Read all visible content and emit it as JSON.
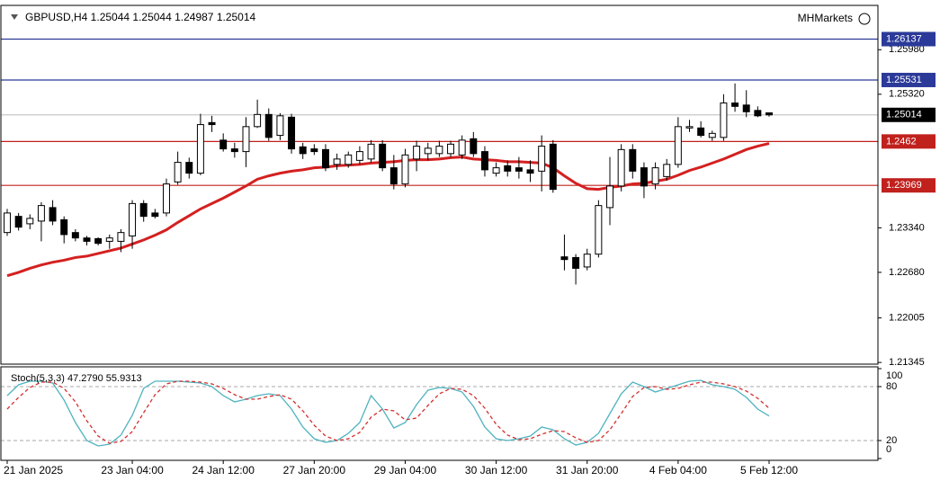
{
  "chart_data": [
    {
      "type": "candlestick",
      "title": "GBPUSD,H4  1.25044 1.25044 1.24987 1.25014",
      "brand": "MHMarkets",
      "categories": [
        "21 Jan 2025",
        null,
        null,
        null,
        null,
        null,
        null,
        null,
        null,
        null,
        null,
        "23 Jan 04:00",
        null,
        null,
        null,
        null,
        null,
        null,
        null,
        "24 Jan 12:00",
        null,
        null,
        null,
        null,
        null,
        null,
        null,
        "27 Jan 20:00",
        null,
        null,
        null,
        null,
        null,
        null,
        null,
        "29 Jan 04:00",
        null,
        null,
        null,
        null,
        null,
        null,
        null,
        "30 Jan 12:00",
        null,
        null,
        null,
        null,
        null,
        null,
        null,
        "31 Jan 20:00",
        null,
        null,
        null,
        null,
        null,
        null,
        null,
        "4 Feb 04:00",
        null,
        null,
        null,
        null,
        null,
        null,
        null,
        "5 Feb 12:00"
      ],
      "open": [
        1.2327,
        1.2351,
        1.234,
        1.2344,
        1.2364,
        1.2346,
        1.2327,
        1.2319,
        1.2318,
        1.2314,
        1.2314,
        1.2322,
        1.237,
        1.2356,
        1.2356,
        1.2402,
        1.2431,
        1.2415,
        1.249,
        1.2464,
        1.2451,
        1.2447,
        1.2484,
        1.2502,
        1.2471,
        1.2498,
        1.2454,
        1.2451,
        1.245,
        1.2428,
        1.2428,
        1.2434,
        1.2436,
        1.2458,
        1.2423,
        1.2399,
        1.2436,
        1.2444,
        1.2444,
        1.2444,
        1.2442,
        1.2466,
        1.2447,
        1.2415,
        1.2426,
        1.2423,
        1.242,
        1.2418,
        1.2458,
        1.2291,
        1.229,
        1.2276,
        1.2295,
        1.2364,
        1.2396,
        1.245,
        1.2423,
        1.2399,
        1.241,
        1.2428,
        1.2482,
        1.2482,
        1.2468,
        1.2468,
        1.2519,
        1.2516,
        1.2508,
        1.25044
      ],
      "high": [
        1.2362,
        1.2356,
        1.2354,
        1.2372,
        1.2375,
        1.2351,
        1.2332,
        1.2322,
        1.232,
        1.2324,
        1.2332,
        1.2375,
        1.2375,
        1.2362,
        1.2407,
        1.2447,
        1.2438,
        1.2503,
        1.25,
        1.2474,
        1.246,
        1.2498,
        1.2524,
        1.2511,
        1.2504,
        1.2503,
        1.246,
        1.2458,
        1.2458,
        1.2444,
        1.2447,
        1.2455,
        1.2464,
        1.2464,
        1.2442,
        1.2451,
        1.2463,
        1.246,
        1.2463,
        1.2463,
        1.2471,
        1.2476,
        1.2455,
        1.2431,
        1.2434,
        1.2439,
        1.2434,
        1.2471,
        1.2464,
        1.2324,
        1.2295,
        1.2303,
        1.2375,
        1.2439,
        1.2458,
        1.2458,
        1.2431,
        1.2431,
        1.2436,
        1.2498,
        1.2494,
        1.2492,
        1.2478,
        1.2532,
        1.2548,
        1.2538,
        1.2514,
        1.25044
      ],
      "low": [
        1.2322,
        1.233,
        1.2332,
        1.2314,
        1.2338,
        1.2311,
        1.2314,
        1.2308,
        1.2308,
        1.2303,
        1.2298,
        1.2303,
        1.2343,
        1.2348,
        1.2351,
        1.2398,
        1.2407,
        1.2412,
        1.2476,
        1.2447,
        1.2438,
        1.2424,
        1.2482,
        1.2463,
        1.2464,
        1.2444,
        1.2436,
        1.2442,
        1.2418,
        1.242,
        1.2423,
        1.2428,
        1.2431,
        1.2418,
        1.2391,
        1.2394,
        1.2418,
        1.2434,
        1.2439,
        1.2439,
        1.2436,
        1.2439,
        1.241,
        1.241,
        1.241,
        1.2407,
        1.2402,
        1.2388,
        1.2386,
        1.2271,
        1.225,
        1.2271,
        1.229,
        1.2338,
        1.2388,
        1.2407,
        1.2378,
        1.2391,
        1.2404,
        1.2423,
        1.2476,
        1.2468,
        1.2463,
        1.2463,
        1.2506,
        1.2498,
        1.2498,
        1.24987
      ],
      "close": [
        1.2356,
        1.2335,
        1.2348,
        1.2367,
        1.2344,
        1.2324,
        1.2319,
        1.2314,
        1.2311,
        1.2319,
        1.2327,
        1.237,
        1.2351,
        1.2351,
        1.2399,
        1.2431,
        1.2415,
        1.2487,
        1.2487,
        1.2451,
        1.2447,
        1.2484,
        1.2502,
        1.2468,
        1.25,
        1.2451,
        1.2444,
        1.2447,
        1.2423,
        1.2436,
        1.2442,
        1.2447,
        1.2458,
        1.2423,
        1.2399,
        1.2442,
        1.2455,
        1.2452,
        1.2455,
        1.2458,
        1.2464,
        1.2444,
        1.242,
        1.2423,
        1.2418,
        1.2418,
        1.2415,
        1.2455,
        1.2391,
        1.2287,
        1.2274,
        1.2295,
        1.2367,
        1.2396,
        1.245,
        1.2418,
        1.2396,
        1.2423,
        1.2428,
        1.2484,
        1.2484,
        1.2471,
        1.2474,
        1.2519,
        1.2514,
        1.2506,
        1.25,
        1.25014
      ],
      "ma": {
        "color": "#d42020",
        "values": [
          1.2263,
          1.2268,
          1.2274,
          1.2279,
          1.2283,
          1.2286,
          1.229,
          1.2292,
          1.2296,
          1.23,
          1.2304,
          1.231,
          1.2316,
          1.2323,
          1.2331,
          1.2342,
          1.2352,
          1.2362,
          1.237,
          1.2378,
          1.2387,
          1.2396,
          1.2406,
          1.2411,
          1.2415,
          1.2418,
          1.242,
          1.2423,
          1.2424,
          1.2426,
          1.2427,
          1.2428,
          1.243,
          1.2431,
          1.2432,
          1.2434,
          1.2435,
          1.2435,
          1.2436,
          1.2438,
          1.2439,
          1.2436,
          1.2435,
          1.2434,
          1.2432,
          1.2432,
          1.2431,
          1.243,
          1.2423,
          1.2411,
          1.24,
          1.2392,
          1.2391,
          1.2394,
          1.2396,
          1.2399,
          1.24,
          1.2403,
          1.2406,
          1.2412,
          1.2419,
          1.2424,
          1.243,
          1.2436,
          1.2443,
          1.245,
          1.2455,
          1.2459
        ]
      },
      "levels": [
        {
          "value": 1.26137,
          "color": "#2b3a99"
        },
        {
          "value": 1.25531,
          "color": "#2b3a99"
        },
        {
          "value": 1.25014,
          "color": "#000000",
          "line_color": "#c8c8c8"
        },
        {
          "value": 1.2462,
          "color": "#c0211d"
        },
        {
          "value": 1.23969,
          "color": "#c0211d"
        }
      ],
      "ylim": [
        1.2132,
        1.2661
      ],
      "yticks": [
        {
          "value": 1.2598,
          "label": "1.25980"
        },
        {
          "value": 1.2532,
          "label": "1.25320"
        },
        {
          "value": 1.2334,
          "label": "1.23340"
        },
        {
          "value": 1.2268,
          "label": "1.22680"
        },
        1.22005,
        1.21345
      ],
      "bull_color": "#ffffff",
      "bear_color": "#000000"
    },
    {
      "type": "line",
      "title": "Stoch(5,3,3) 47.2790 55.9313",
      "ylim": [
        0,
        100
      ],
      "yticks": [
        0,
        20,
        80,
        100
      ],
      "series": [
        {
          "color": "#4fb3bf",
          "values": [
            70,
            82,
            86,
            86,
            84,
            65,
            40,
            20,
            14,
            16,
            26,
            48,
            78,
            86,
            86,
            86,
            85,
            84,
            80,
            70,
            63,
            66,
            70,
            72,
            70,
            55,
            35,
            22,
            18,
            20,
            28,
            40,
            70,
            55,
            34,
            40,
            60,
            76,
            79,
            78,
            74,
            58,
            35,
            22,
            20,
            22,
            25,
            35,
            32,
            22,
            15,
            18,
            28,
            50,
            72,
            85,
            80,
            74,
            78,
            82,
            86,
            87,
            82,
            80,
            77,
            68,
            55,
            47.279
          ]
        },
        {
          "color": "#d43030",
          "dashed": true,
          "values": [
            55,
            68,
            79,
            85,
            85,
            78,
            63,
            42,
            25,
            17,
            19,
            30,
            51,
            71,
            83,
            86,
            86,
            85,
            83,
            78,
            71,
            66,
            66,
            69,
            71,
            66,
            53,
            37,
            25,
            20,
            22,
            29,
            46,
            55,
            53,
            43,
            45,
            59,
            72,
            78,
            77,
            70,
            56,
            38,
            26,
            21,
            22,
            27,
            31,
            30,
            23,
            18,
            20,
            32,
            50,
            69,
            79,
            80,
            77,
            78,
            82,
            85,
            85,
            83,
            80,
            75,
            67,
            55.9313
          ]
        }
      ]
    }
  ]
}
